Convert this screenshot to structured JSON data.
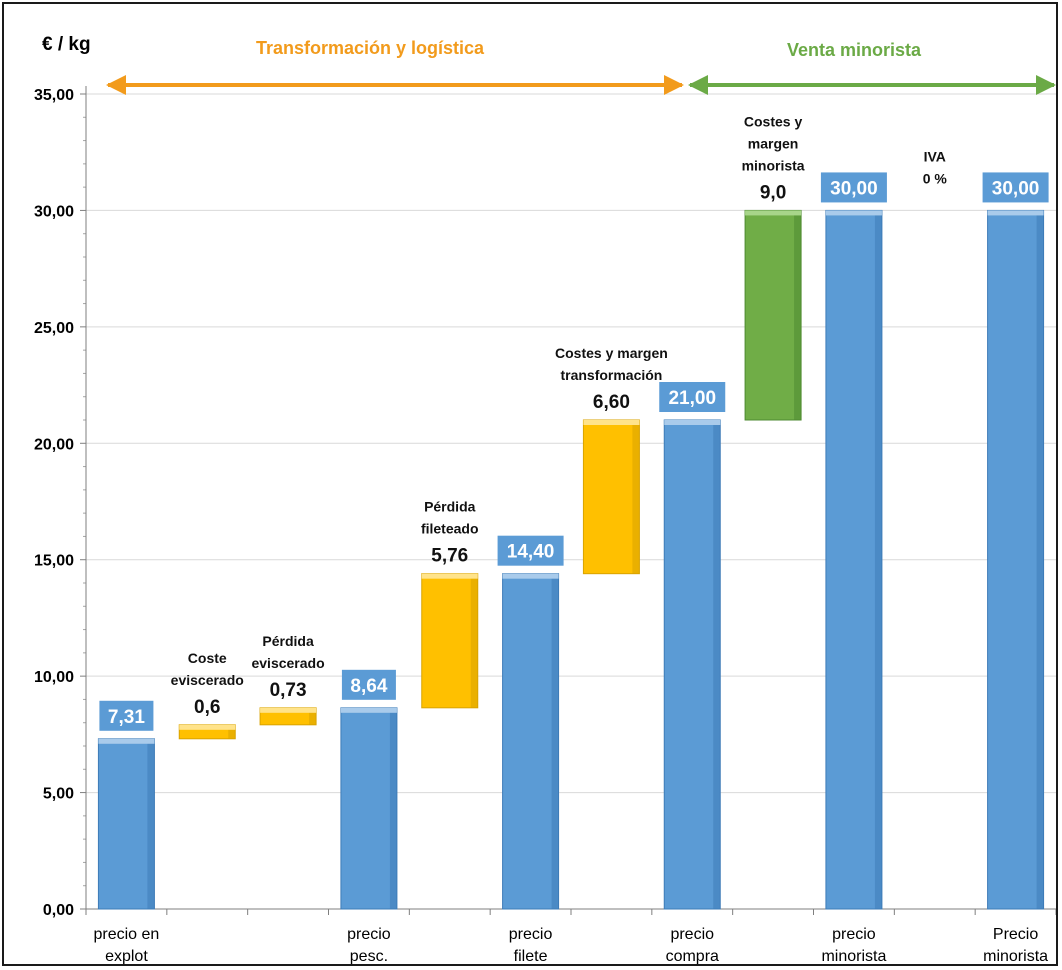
{
  "chart_data": {
    "type": "bar",
    "subtype": "waterfall",
    "ylabel": "€ / kg",
    "ylim": [
      0,
      35
    ],
    "yticks": [
      "0,00",
      "5,00",
      "10,00",
      "15,00",
      "20,00",
      "25,00",
      "30,00",
      "35,00"
    ],
    "grid": true,
    "phases": [
      {
        "label": "Transformación y logística",
        "color": "#F29B1C"
      },
      {
        "label": "Venta minorista",
        "color": "#6BAA46"
      }
    ],
    "bars": [
      {
        "category": [
          "precio en",
          "explot"
        ],
        "kind": "total",
        "base": 0,
        "top": 7.31,
        "label": "7,31",
        "annotation": []
      },
      {
        "category": [],
        "kind": "step",
        "base": 7.31,
        "top": 7.91,
        "label": "0,6",
        "annotation": [
          "Coste",
          "eviscerado"
        ]
      },
      {
        "category": [],
        "kind": "step",
        "base": 7.91,
        "top": 8.64,
        "label": "0,73",
        "annotation": [
          "Pérdida",
          "eviscerado"
        ]
      },
      {
        "category": [
          "precio",
          "pesc."
        ],
        "kind": "total",
        "base": 0,
        "top": 8.64,
        "label": "8,64",
        "annotation": []
      },
      {
        "category": [],
        "kind": "step",
        "base": 8.64,
        "top": 14.4,
        "label": "5,76",
        "annotation": [
          "Pérdida",
          "fileteado"
        ]
      },
      {
        "category": [
          "precio",
          "filete"
        ],
        "kind": "total",
        "base": 0,
        "top": 14.4,
        "label": "14,40",
        "annotation": []
      },
      {
        "category": [],
        "kind": "step",
        "base": 14.4,
        "top": 21.0,
        "label": "6,60",
        "annotation": [
          "Costes y margen",
          "transformación"
        ]
      },
      {
        "category": [
          "precio",
          "compra"
        ],
        "kind": "total",
        "base": 0,
        "top": 21.0,
        "label": "21,00",
        "annotation": []
      },
      {
        "category": [],
        "kind": "retail",
        "base": 21.0,
        "top": 30.0,
        "label": "9,0",
        "annotation": [
          "Costes y",
          "margen",
          "minorista"
        ]
      },
      {
        "category": [
          "precio",
          "minorista"
        ],
        "kind": "total",
        "base": 0,
        "top": 30.0,
        "label": "30,00",
        "annotation": []
      },
      {
        "category": [],
        "kind": "none",
        "base": 30.0,
        "top": 30.0,
        "label": "",
        "annotation": [
          "IVA",
          "0 %"
        ]
      },
      {
        "category": [
          "Precio",
          "minorista"
        ],
        "kind": "total",
        "base": 0,
        "top": 30.0,
        "label": "30,00",
        "annotation": []
      }
    ],
    "colors": {
      "total": "#5B9BD5",
      "step": "#FFC000",
      "retail": "#70AD47",
      "label_box": "#5B9BD5"
    }
  }
}
